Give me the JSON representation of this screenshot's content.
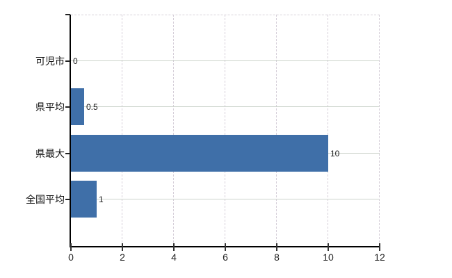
{
  "chart_data": {
    "type": "bar",
    "orientation": "horizontal",
    "title": "",
    "xlabel": "",
    "ylabel": "",
    "categories": [
      "可児市",
      "県平均",
      "県最大",
      "全国平均"
    ],
    "values": [
      0,
      0.5,
      10,
      1
    ],
    "value_labels": [
      "0",
      "0.5",
      "10",
      "1"
    ],
    "x_ticks": [
      0,
      2,
      4,
      6,
      8,
      10,
      12
    ],
    "x_tick_labels": [
      "0",
      "2",
      "4",
      "6",
      "8",
      "10",
      "12"
    ],
    "xlim": [
      0,
      12
    ],
    "grid": true,
    "legend": false,
    "colors": {
      "bar": "#3f6fa8",
      "axis": "#000000",
      "h_gridline": "#ccd3cb",
      "v_gridline": "#d6cfd9",
      "plot_border_dashed": "#d6cfd9",
      "text": "#1a1a1a",
      "background": "#ffffff"
    }
  }
}
